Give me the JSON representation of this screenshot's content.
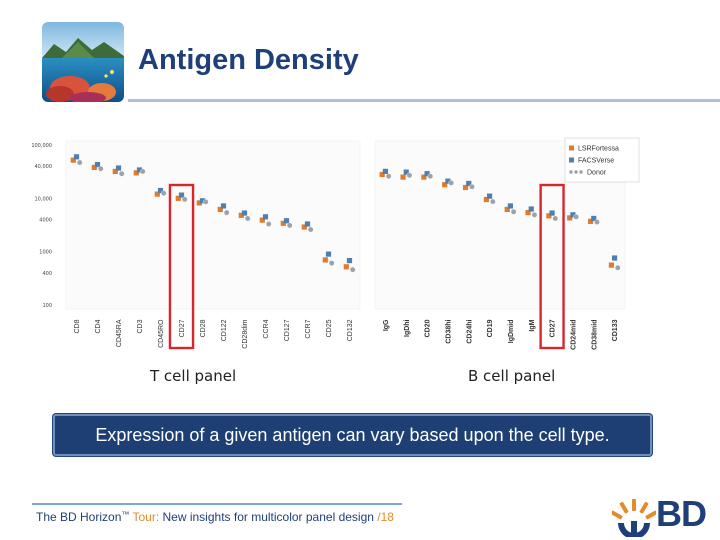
{
  "slide": {
    "title": "Antigen Density",
    "banner": "Expression of a given antigen can vary based upon the cell type.",
    "footer_brand": "The BD Horizon",
    "footer_tm": "™",
    "footer_tour": " Tour:",
    "footer_subtitle": " New insights for multicolor panel design",
    "footer_page": " /18",
    "logo_text": "BD",
    "colors": {
      "title": "#1f3f7a",
      "banner_bg": "#1e3f73",
      "highlight": "#d9262b",
      "accent": "#e38a2a"
    }
  },
  "chart_data": {
    "type": "scatter",
    "yscale": "log",
    "ylim": [
      100,
      100000
    ],
    "yticks": [
      {
        "v": 100,
        "label": "100"
      },
      {
        "v": 400,
        "label": "400"
      },
      {
        "v": 1000,
        "label": "1000"
      },
      {
        "v": 4000,
        "label": "4000"
      },
      {
        "v": 10000,
        "label": "10,000"
      },
      {
        "v": 40000,
        "label": "40,000"
      },
      {
        "v": 100000,
        "label": "100,000"
      }
    ],
    "legend": {
      "position": "top-right",
      "entries": [
        {
          "name": "LSRFortessa",
          "color": "#e07a2e"
        },
        {
          "name": "FACSVerse",
          "color": "#4f7fae"
        },
        {
          "name": "Donor",
          "color": "#9aa3ad"
        }
      ]
    },
    "panels": [
      {
        "name": "T cell panel",
        "highlight": "CD27",
        "categories": [
          "CD8",
          "CD4",
          "CD45RA",
          "CD3",
          "CD45RO",
          "CD27",
          "CD28",
          "CD122",
          "CD28dim",
          "CCR4",
          "CD127",
          "CCR7",
          "CD25",
          "CD132"
        ],
        "series": [
          {
            "name": "LSRFortessa",
            "values": [
              52000,
              38000,
              32000,
              30000,
              12000,
              10000,
              8200,
              6200,
              4800,
              3900,
              3400,
              2900,
              700,
              520
            ]
          },
          {
            "name": "FACSVerse",
            "values": [
              60000,
              43000,
              37000,
              34000,
              14000,
              11500,
              9000,
              7200,
              5300,
              4500,
              3800,
              3300,
              900,
              680
            ]
          },
          {
            "name": "Donor",
            "values": [
              47000,
              36000,
              29000,
              32000,
              12500,
              9600,
              8600,
              5400,
              4200,
              3300,
              3100,
              2600,
              610,
              460
            ]
          }
        ]
      },
      {
        "name": "B cell panel",
        "highlight": "CD27",
        "categories": [
          "IgG",
          "IgDhi",
          "CD20",
          "CD38hi",
          "CD24hi",
          "CD19",
          "IgDmid",
          "IgM",
          "CD27",
          "CD24mid",
          "CD38mid",
          "CD133"
        ],
        "series": [
          {
            "name": "LSRFortessa",
            "values": [
              28000,
              25000,
              25000,
              18000,
              16000,
              9500,
              6200,
              5400,
              4700,
              4300,
              3700,
              560
            ]
          },
          {
            "name": "FACSVerse",
            "values": [
              32000,
              31000,
              29000,
              21000,
              19000,
              11000,
              7200,
              6300,
              5300,
              4900,
              4200,
              760
            ]
          },
          {
            "name": "Donor",
            "values": [
              26000,
              27000,
              26000,
              19500,
              16500,
              8700,
              5600,
              4900,
              4200,
              4500,
              3600,
              500
            ]
          }
        ]
      }
    ]
  }
}
